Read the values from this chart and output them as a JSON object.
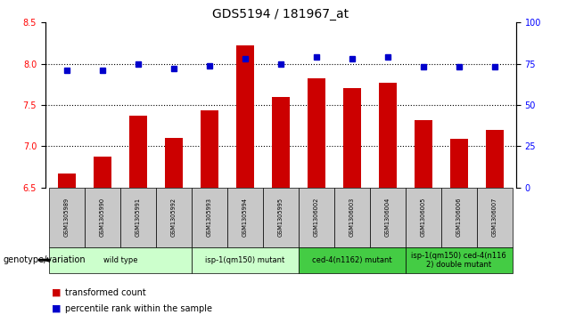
{
  "title": "GDS5194 / 181967_at",
  "samples": [
    "GSM1305989",
    "GSM1305990",
    "GSM1305991",
    "GSM1305992",
    "GSM1305993",
    "GSM1305994",
    "GSM1305995",
    "GSM1306002",
    "GSM1306003",
    "GSM1306004",
    "GSM1306005",
    "GSM1306006",
    "GSM1306007"
  ],
  "bar_values": [
    6.67,
    6.87,
    7.37,
    7.1,
    7.43,
    8.22,
    7.6,
    7.82,
    7.7,
    7.77,
    7.32,
    7.09,
    7.2
  ],
  "percentile_values": [
    71,
    71,
    75,
    72,
    74,
    78,
    75,
    79,
    78,
    79,
    73,
    73,
    73
  ],
  "ylim_left": [
    6.5,
    8.5
  ],
  "ylim_right": [
    0,
    100
  ],
  "yticks_left": [
    6.5,
    7.0,
    7.5,
    8.0,
    8.5
  ],
  "yticks_right": [
    0,
    25,
    50,
    75,
    100
  ],
  "bar_color": "#cc0000",
  "dot_color": "#0000cc",
  "hgrid_values": [
    7.0,
    7.5,
    8.0
  ],
  "groups_spans": [
    {
      "start": 0,
      "end": 3,
      "color": "#ccffcc",
      "label": "wild type"
    },
    {
      "start": 4,
      "end": 6,
      "color": "#ccffcc",
      "label": "isp-1(qm150) mutant"
    },
    {
      "start": 7,
      "end": 9,
      "color": "#44cc44",
      "label": "ced-4(n1162) mutant"
    },
    {
      "start": 10,
      "end": 12,
      "color": "#44cc44",
      "label": "isp-1(qm150) ced-4(n116\n2) double mutant"
    }
  ],
  "genotype_label": "genotype/variation",
  "legend_bar_label": "transformed count",
  "legend_dot_label": "percentile rank within the sample",
  "cell_bg": "#c8c8c8",
  "title_fontsize": 10,
  "tick_fontsize": 7,
  "sample_fontsize": 4.8,
  "group_fontsize": 6,
  "legend_fontsize": 7,
  "genotype_fontsize": 7
}
